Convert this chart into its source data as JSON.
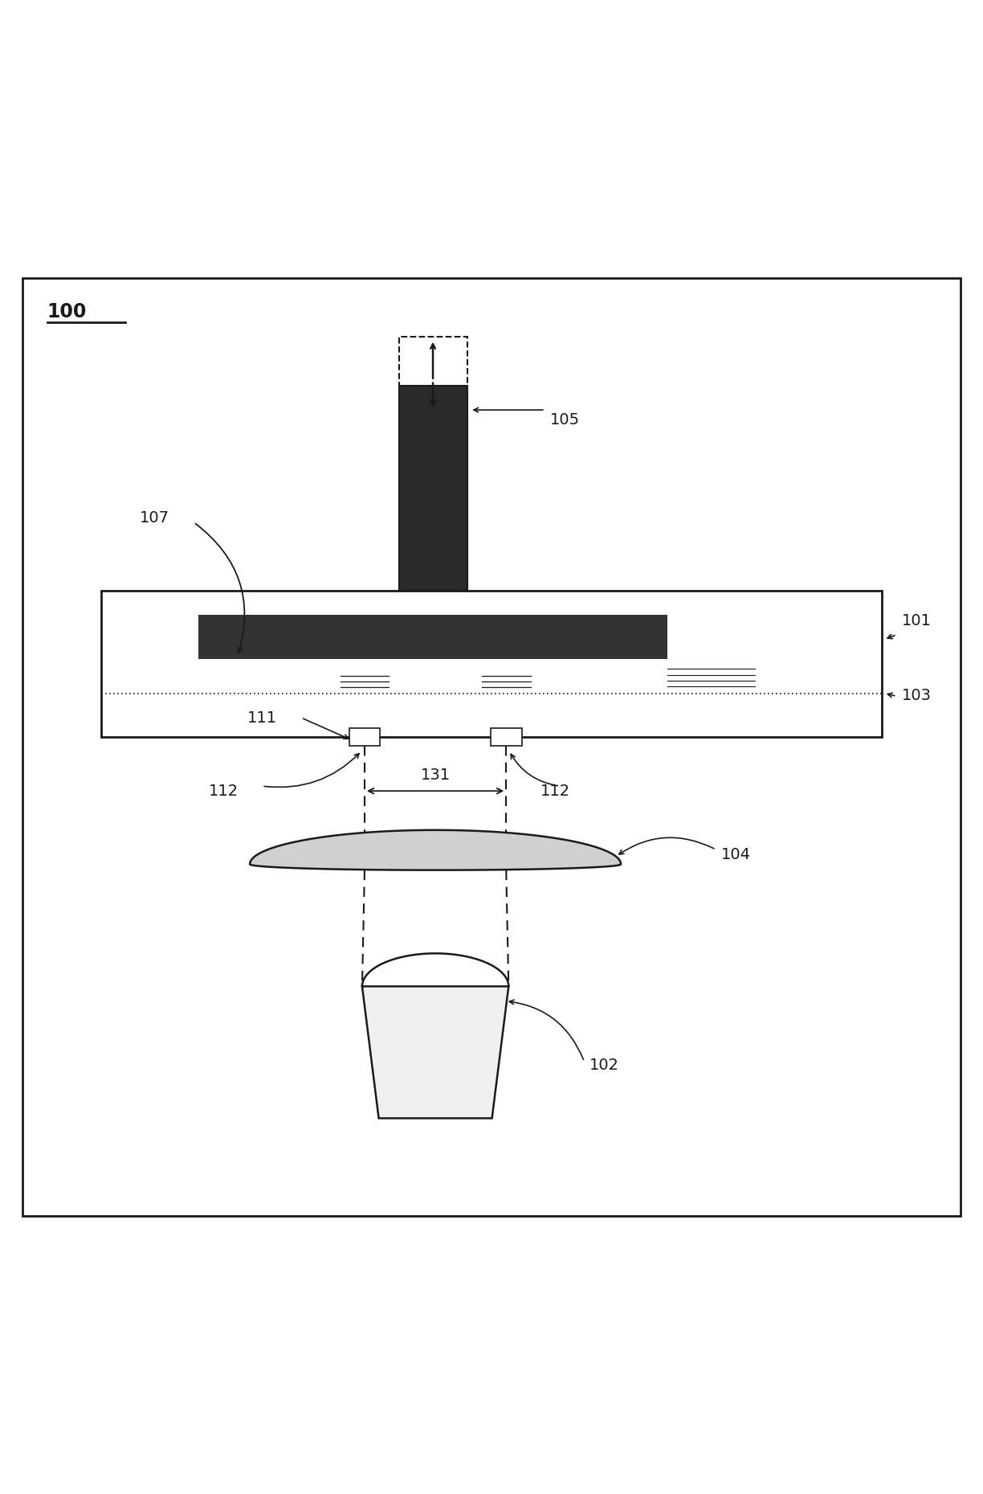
{
  "fig_width": 12.24,
  "fig_height": 18.59,
  "bg_color": "#ffffff",
  "border_color": "#000000",
  "label_100": "100",
  "label_101": "101",
  "label_102": "102",
  "label_103": "103",
  "label_104": "104",
  "label_105": "105",
  "label_107": "107",
  "label_111": "111",
  "label_112a": "112",
  "label_112b": "112",
  "label_131": "131",
  "dark_color": "#1a1a1a",
  "box_color": "#2a2a2a",
  "plate_color": "#333333",
  "lens_fill": "#d0d0d0",
  "src_fill": "#f0f0f0"
}
